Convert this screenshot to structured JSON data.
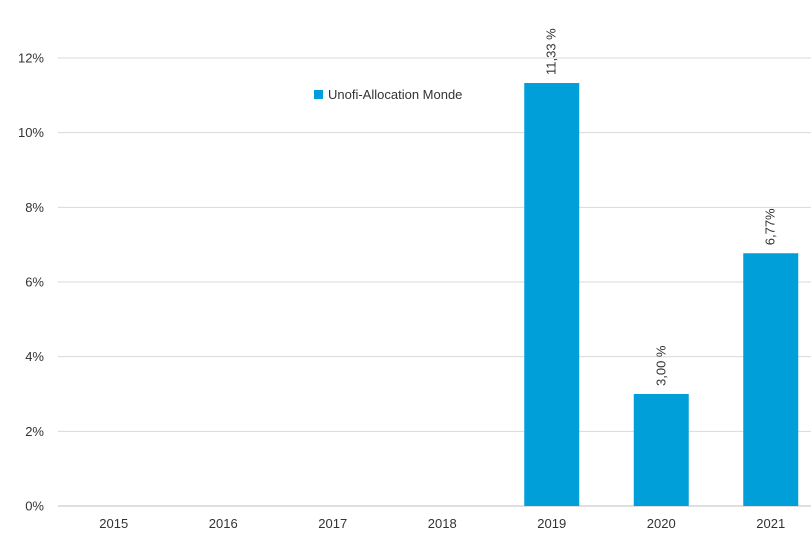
{
  "chart_data": {
    "type": "bar",
    "title": "",
    "xlabel": "",
    "ylabel": "",
    "categories": [
      "2015",
      "2016",
      "2017",
      "2018",
      "2019",
      "2020",
      "2021"
    ],
    "series": [
      {
        "name": "Unofi-Allocation Monde",
        "values": [
          null,
          null,
          null,
          null,
          11.33,
          3.0,
          6.77
        ],
        "data_labels": [
          "",
          "",
          "",
          "",
          "11,33 %",
          "3,00 %",
          "6,77%"
        ]
      }
    ],
    "ylim": [
      0,
      12
    ],
    "yticks": [
      0,
      2,
      4,
      6,
      8,
      10,
      12
    ],
    "ytick_labels": [
      "0%",
      "2%",
      "4%",
      "6%",
      "8%",
      "10%",
      "12%"
    ],
    "grid": true,
    "legend_position": "top-center",
    "colors": {
      "bar": "#009fd9"
    }
  }
}
